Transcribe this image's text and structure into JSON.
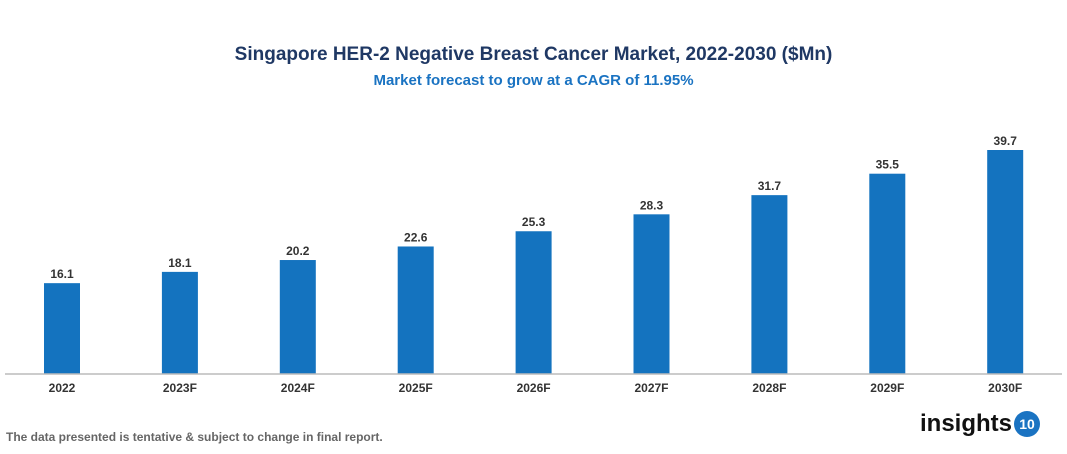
{
  "chart_data": {
    "type": "bar",
    "title": "Singapore HER-2 Negative Breast Cancer Market, 2022-2030 ($Mn)",
    "subtitle": "Market forecast to grow at a CAGR of 11.95%",
    "categories": [
      "2022",
      "2023F",
      "2024F",
      "2025F",
      "2026F",
      "2027F",
      "2028F",
      "2029F",
      "2030F"
    ],
    "values": [
      16.1,
      18.1,
      20.2,
      22.6,
      25.3,
      28.3,
      31.7,
      35.5,
      39.7
    ],
    "xlabel": "",
    "ylabel": "",
    "ylim": [
      0,
      40
    ],
    "grid": false,
    "data_labels": true,
    "bar_color": "#1473bf"
  },
  "footnote": "The data presented is tentative & subject to change in final report.",
  "logo": {
    "text": "insights",
    "badge": "10"
  }
}
